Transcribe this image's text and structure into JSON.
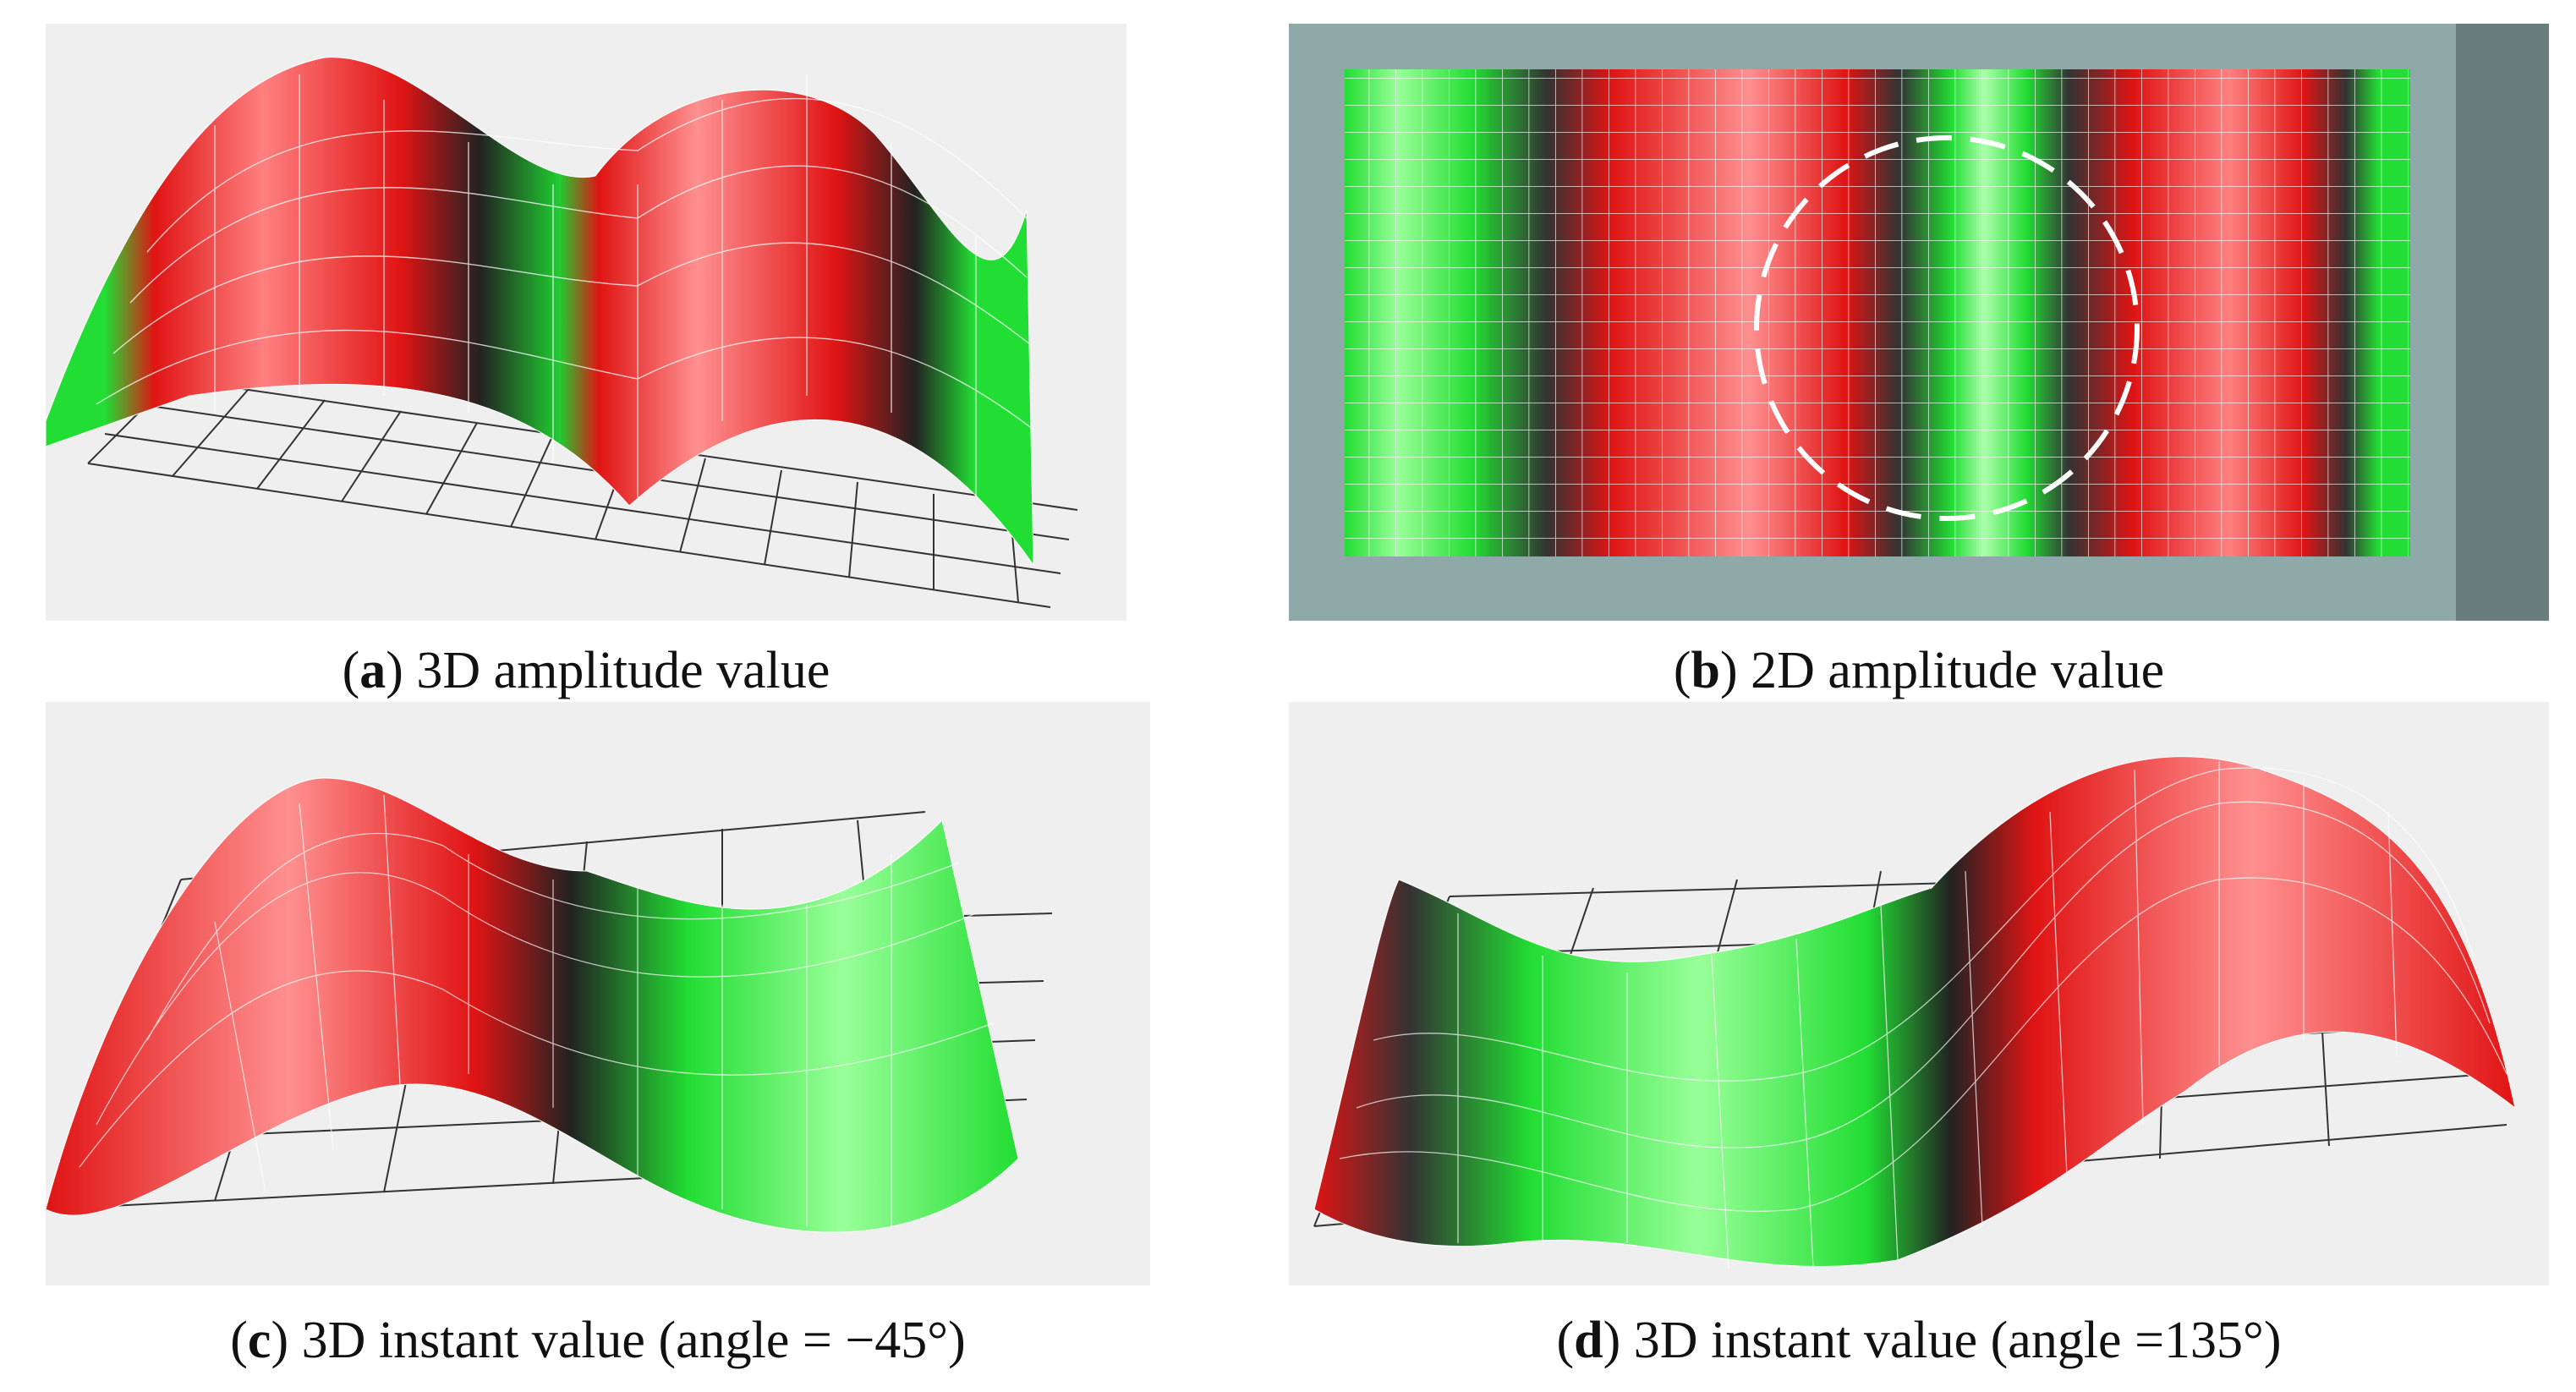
{
  "figure": {
    "panels": [
      {
        "letter": "a",
        "text": "3D amplitude value"
      },
      {
        "letter": "b",
        "text": "2D amplitude value"
      },
      {
        "letter": "c",
        "text": "3D instant value (angle = −45°)"
      },
      {
        "letter": "d",
        "text": "3D instant value (angle =135°)"
      }
    ]
  },
  "colors": {
    "panel_background": "#efefef",
    "positive": "#ee1111",
    "negative": "#11cc22",
    "node": "#222222",
    "grid_overlay": "#ffffff",
    "concrete": "#8fa8a8"
  }
}
